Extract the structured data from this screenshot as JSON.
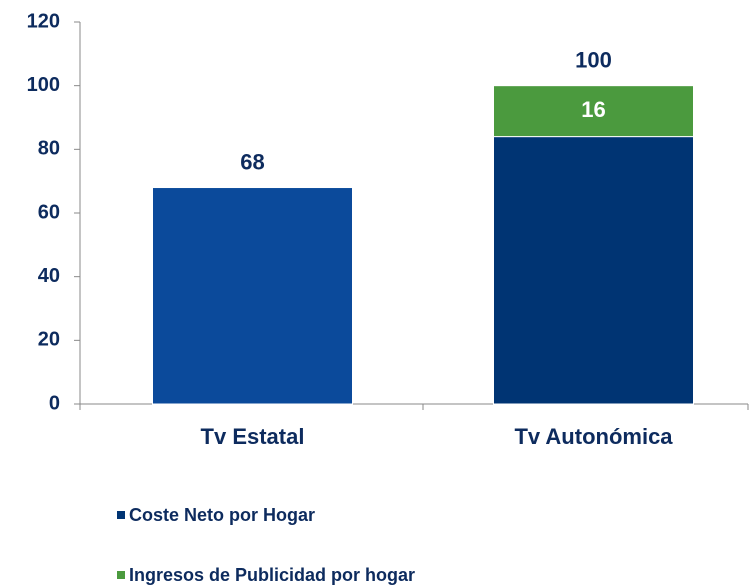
{
  "chart_data": {
    "type": "stacked_bar",
    "categories": [
      "Tv Estatal",
      "Tv Autonómica"
    ],
    "series": [
      {
        "name": "Coste Neto por Hogar",
        "color": "#003473",
        "colors": [
          "#0b4a9b",
          "#003473"
        ],
        "values": [
          68,
          84
        ],
        "show_labels": false
      },
      {
        "name": "Ingresos de Publicidad por hogar",
        "color": "#4b9a3e",
        "values": [
          null,
          16
        ],
        "show_labels": true
      }
    ],
    "totals": [
      68,
      100
    ],
    "ylim": [
      0,
      120
    ],
    "yticks": [
      0,
      20,
      40,
      60,
      80,
      100,
      120
    ],
    "grid": false,
    "legend": "bottom"
  }
}
